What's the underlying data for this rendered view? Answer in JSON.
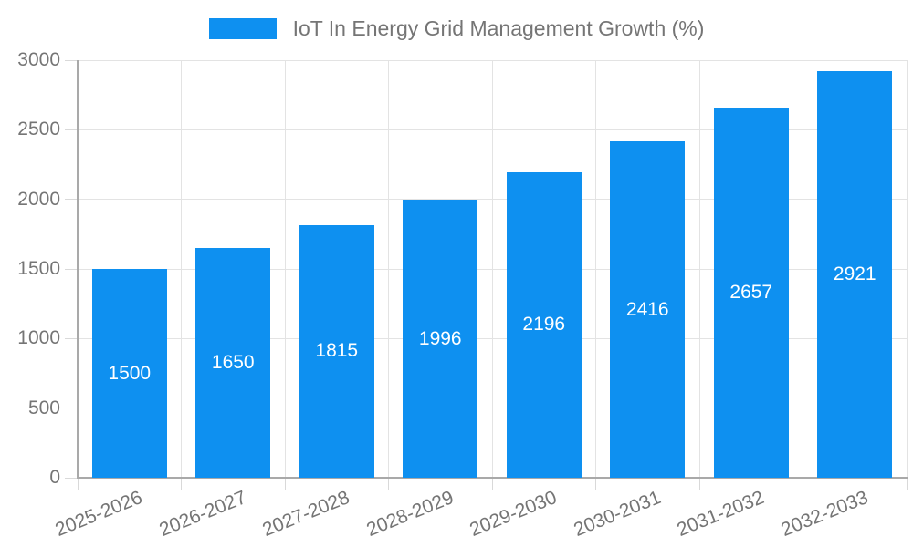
{
  "chart_data": {
    "type": "bar",
    "title": "IoT In Energy Grid Management Growth (%)",
    "categories": [
      "2025-2026",
      "2026-2027",
      "2027-2028",
      "2028-2029",
      "2029-2030",
      "2030-2031",
      "2031-2032",
      "2032-2033"
    ],
    "values": [
      1500,
      1650,
      1815,
      1996,
      2196,
      2416,
      2657,
      2921
    ],
    "value_labels": [
      "1500",
      "1650",
      "1815",
      "1996",
      "2196",
      "2416",
      "2657",
      "2921"
    ],
    "xlabel": "",
    "ylabel": "",
    "ylim": [
      0,
      3000
    ],
    "yticks": [
      0,
      500,
      1000,
      1500,
      2000,
      2500,
      3000
    ],
    "ytick_labels": [
      "0",
      "500",
      "1000",
      "1500",
      "2000",
      "2500",
      "3000"
    ],
    "grid": true,
    "legend_position": "top-center",
    "colors": {
      "bar": "#0E90F0",
      "bar_label": "#FFFFFF",
      "grid": "#E3E3E3",
      "axis_line": "#A9A9A9",
      "tick_mark": "#D9D9D9",
      "axis_text": "#757575",
      "title_text": "#757575"
    }
  },
  "legend": {
    "label": "IoT In Energy Grid Management Growth (%)"
  }
}
